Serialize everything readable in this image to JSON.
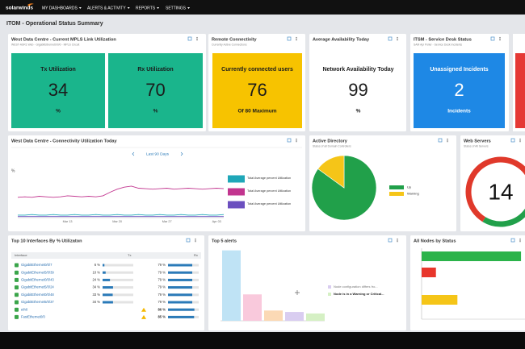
{
  "nav": {
    "logo": "solarwinds",
    "menus": [
      "MY DASHBOARDS",
      "ALERTS & ACTIVITY",
      "REPORTS",
      "SETTINGS"
    ]
  },
  "page_title": "ITOM - Operational Status Summary",
  "widgets": {
    "mpls": {
      "title": "West Data Centre - Current MPLS Link Utilization",
      "subtitle": "WEST-ASR1 Web - GigabitEthernet0/0/0 - MPLS Circuit",
      "tiles": [
        {
          "label": "Tx Utilization",
          "value": 34,
          "unit": "%"
        },
        {
          "label": "Rx Utilization",
          "value": 70,
          "unit": "%"
        }
      ]
    },
    "remote": {
      "title": "Remote Connectivity",
      "subtitle": "Currently Active Connections",
      "tile": {
        "label": "Currently connected users",
        "value": 76,
        "caption": "Of 80 Maximum"
      }
    },
    "availability": {
      "title": "Average Availability Today",
      "tile": {
        "label": "Network Availability Today",
        "value": 99,
        "unit": "%"
      }
    },
    "itsm": {
      "title": "ITSM - Service Desk Status",
      "subtitle": "SAM Api Poller - Service Desk Incidents",
      "tile": {
        "label": "Unassigned Incidents",
        "value": 2,
        "caption": "Incidents"
      }
    },
    "interfaces": {
      "title": "Top 10 Interfaces By % Utilizaton",
      "columns": [
        "Interface",
        "Tx",
        "Rx"
      ],
      "rows": [
        {
          "interface": "GigabitEthernet0/0/7",
          "tx": 6,
          "tx_label": "6 %",
          "rx": 79,
          "rx_label": "79 %"
        },
        {
          "interface": "GigabitEthernet5/0/39",
          "tx": 10,
          "tx_label": "10 %",
          "rx": 79,
          "rx_label": "79 %"
        },
        {
          "interface": "GigabitEthernet0/0/43",
          "tx": 24,
          "tx_label": "24 %",
          "rx": 79,
          "rx_label": "79 %"
        },
        {
          "interface": "GigabitEthernet5/0/24",
          "tx": 34,
          "tx_label": "34 %",
          "rx": 79,
          "rx_label": "79 %"
        },
        {
          "interface": "GigabitEthernet0/0/48",
          "tx": 33,
          "tx_label": "33 %",
          "rx": 79,
          "rx_label": "79 %"
        },
        {
          "interface": "GigabitEthernet5/0/37",
          "tx": 34,
          "tx_label": "34 %",
          "rx": 79,
          "rx_label": "79 %"
        },
        {
          "interface": "eth0",
          "tx": null,
          "rx": 86,
          "rx_label": "86 %"
        },
        {
          "interface": "FastEthernet0/0",
          "tx": null,
          "rx": 85,
          "rx_label": "85 %"
        }
      ]
    }
  },
  "chart_data": [
    {
      "type": "line",
      "title": "West Data Centre - Connectivity Utilization Today",
      "range_button": "Last 90 Days",
      "ylabel": "%",
      "categories": [
        null,
        null,
        null,
        null,
        null,
        null,
        null,
        "Mar 13",
        null,
        null,
        null,
        null,
        null,
        null,
        "Mar 20",
        null,
        null,
        null,
        null,
        null,
        null,
        "Mar 27",
        null,
        null,
        null,
        null,
        null,
        null,
        "Apr 03",
        null
      ],
      "ylim": [
        0,
        100
      ],
      "series": [
        {
          "name": "Total Average percent Utilization",
          "color": "#1fa7b8",
          "values": [
            5,
            5,
            6,
            5,
            5,
            6,
            5,
            5,
            6,
            5,
            5,
            6,
            5,
            5,
            6,
            5,
            5,
            6,
            5,
            5,
            6,
            5,
            5,
            6,
            5,
            5,
            6,
            5,
            5,
            6
          ]
        },
        {
          "name": "Total Average percent Utilization",
          "color": "#c2358f",
          "values": [
            40,
            41,
            40,
            42,
            41,
            40,
            41,
            43,
            42,
            41,
            42,
            41,
            43,
            50,
            56,
            60,
            62,
            58,
            57,
            56,
            57,
            58,
            56,
            57,
            58,
            57,
            56,
            57,
            58,
            57
          ]
        },
        {
          "name": "Total Average percent Utilization",
          "color": "#6b4fbf",
          "values": [
            2,
            2,
            2,
            2,
            2,
            2,
            2,
            2,
            2,
            2,
            2,
            2,
            2,
            2,
            2,
            2,
            2,
            2,
            2,
            2,
            2,
            2,
            2,
            2,
            2,
            2,
            2,
            2,
            2,
            2
          ]
        }
      ]
    },
    {
      "type": "pie",
      "title": "Active Directory",
      "subtitle": "Status of all Domain Controllers",
      "categories": [
        "Up",
        "Warning"
      ],
      "values": [
        85,
        15
      ],
      "colors": [
        "#21a04a",
        "#f5c518"
      ]
    },
    {
      "type": "donut",
      "title": "Web Servers",
      "subtitle": "Status of All Servers",
      "center_label": 14,
      "values": [
        42,
        58
      ],
      "colors": [
        "#21a04a",
        "#e0392b"
      ]
    },
    {
      "type": "bar",
      "title": "Top 5 alerts",
      "values": [
        48,
        18,
        7,
        6,
        5
      ],
      "colors": [
        "#bfe3f5",
        "#f9c9dc",
        "#fbd9b5",
        "#d9cdf0",
        "#d5f0c4"
      ],
      "ylim": [
        0,
        50
      ],
      "legend": [
        "Node configuration differs fro...",
        "Node is in a Warning or Critical..."
      ]
    },
    {
      "type": "hbar",
      "title": "All Nodes by Status",
      "values": [
        125,
        18,
        45
      ],
      "colors": [
        "#2bb34a",
        "#e8362b",
        "#f5c518"
      ],
      "xlim": [
        0,
        130
      ]
    }
  ]
}
